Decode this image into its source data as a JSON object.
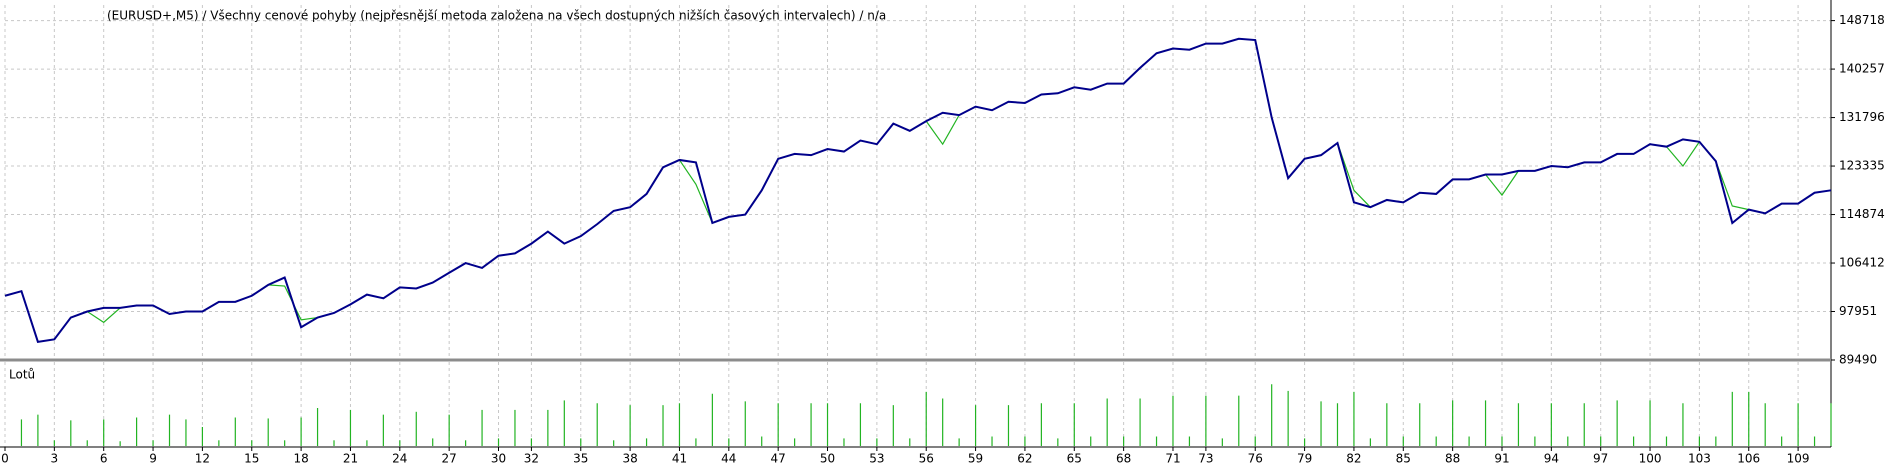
{
  "chart_data": [
    {
      "type": "line",
      "title": "(EURUSD+,M5) / Všechny cenové pohyby (nejpřesnější metoda založena na všech dostupných nižších časových intervalech) / n/a",
      "x": [
        0,
        1,
        2,
        3,
        4,
        5,
        6,
        7,
        8,
        9,
        10,
        11,
        12,
        13,
        14,
        15,
        16,
        17,
        18,
        19,
        20,
        21,
        22,
        23,
        24,
        25,
        26,
        27,
        28,
        29,
        30,
        31,
        32,
        33,
        34,
        35,
        36,
        37,
        38,
        39,
        40,
        41,
        42,
        43,
        44,
        45,
        46,
        47,
        48,
        49,
        50,
        51,
        52,
        53,
        54,
        55,
        56,
        57,
        58,
        59,
        60,
        61,
        62,
        63,
        64,
        65,
        66,
        67,
        68,
        69,
        70,
        71,
        72,
        73,
        74,
        75,
        76,
        77,
        78,
        79,
        80,
        81,
        82,
        83,
        84,
        85,
        86,
        87,
        88,
        89,
        90,
        91,
        92,
        93,
        94,
        95,
        96,
        97,
        98,
        99,
        100,
        101,
        102,
        103,
        104,
        105,
        106,
        107,
        108,
        109,
        110,
        111
      ],
      "series": [
        {
          "color": "#22b422",
          "values": [
            100700,
            101500,
            92660,
            93100,
            96900,
            97950,
            96060,
            98580,
            99000,
            99000,
            97520,
            97950,
            97950,
            99640,
            99640,
            100700,
            102600,
            102400,
            96500,
            96900,
            97700,
            99200,
            100900,
            100260,
            102160,
            101970,
            103000,
            104720,
            106400,
            105560,
            107690,
            108100,
            109800,
            111900,
            109800,
            111100,
            113200,
            115510,
            116150,
            118470,
            123110,
            124400,
            120160,
            113400,
            114460,
            114870,
            119100,
            124600,
            125450,
            125240,
            126300,
            125870,
            127780,
            127150,
            130740,
            129480,
            131170,
            127150,
            132220,
            133700,
            133080,
            134550,
            134340,
            135820,
            136030,
            137080,
            136660,
            137720,
            137720,
            140470,
            143010,
            143850,
            143640,
            144700,
            144700,
            145550,
            145330,
            131800,
            121220,
            124600,
            125240,
            127360,
            119100,
            116150,
            117420,
            117000,
            118680,
            118470,
            121010,
            121010,
            121860,
            118260,
            122490,
            122490,
            123340,
            123130,
            123970,
            123970,
            125450,
            125450,
            127150,
            126720,
            123340,
            127570,
            124180,
            116360,
            115730,
            115080,
            116780,
            116780,
            118680,
            119100
          ]
        },
        {
          "color": "#00008b",
          "values": [
            100700,
            101500,
            92660,
            93100,
            96900,
            97950,
            98580,
            98580,
            99000,
            99000,
            97520,
            97950,
            97950,
            99640,
            99640,
            100700,
            102600,
            103880,
            95200,
            96900,
            97700,
            99200,
            100900,
            100260,
            102160,
            101970,
            103000,
            104720,
            106400,
            105560,
            107690,
            108100,
            109800,
            111900,
            109800,
            111100,
            113200,
            115510,
            116150,
            118470,
            123110,
            124400,
            123970,
            113400,
            114460,
            114870,
            119100,
            124600,
            125450,
            125240,
            126300,
            125870,
            127780,
            127150,
            130740,
            129480,
            131170,
            132640,
            132220,
            133700,
            133080,
            134550,
            134340,
            135820,
            136030,
            137080,
            136660,
            137720,
            137720,
            140470,
            143010,
            143850,
            143640,
            144700,
            144700,
            145550,
            145330,
            131800,
            121220,
            124600,
            125240,
            127360,
            117000,
            116150,
            117420,
            117000,
            118680,
            118470,
            121010,
            121010,
            121860,
            121860,
            122490,
            122490,
            123340,
            123130,
            123970,
            123970,
            125450,
            125450,
            127150,
            126720,
            127990,
            127570,
            124180,
            113400,
            115730,
            115080,
            116780,
            116780,
            118680,
            119100
          ]
        }
      ],
      "xlim": [
        0,
        111
      ],
      "xticks": [
        0,
        3,
        6,
        9,
        12,
        15,
        18,
        21,
        24,
        27,
        30,
        32,
        35,
        38,
        41,
        44,
        47,
        50,
        53,
        56,
        59,
        62,
        65,
        68,
        71,
        73,
        76,
        79,
        82,
        85,
        88,
        91,
        94,
        97,
        100,
        103,
        106,
        109
      ],
      "ylim": [
        89490,
        151440
      ],
      "yticks": [
        89490,
        97951,
        106412,
        114874,
        123335,
        131796,
        140257,
        148718
      ],
      "grid": true
    },
    {
      "type": "bar",
      "title": "Lotů",
      "color": "#22b422",
      "values": [
        null,
        0.28,
        0.33,
        0.06,
        0.27,
        0.06,
        0.28,
        0.05,
        0.3,
        0.06,
        0.33,
        0.28,
        0.2,
        0.06,
        0.3,
        0.06,
        0.29,
        0.06,
        0.3,
        0.4,
        0.06,
        0.38,
        0.06,
        0.33,
        0.06,
        0.36,
        0.08,
        0.33,
        0.06,
        0.38,
        0.08,
        0.38,
        0.08,
        0.38,
        0.48,
        0.08,
        0.45,
        0.06,
        0.43,
        0.08,
        0.43,
        0.45,
        0.08,
        0.55,
        0.08,
        0.47,
        0.1,
        0.45,
        0.08,
        0.45,
        0.45,
        0.08,
        0.45,
        0.08,
        0.43,
        0.08,
        0.57,
        0.5,
        0.08,
        0.43,
        0.1,
        0.43,
        0.1,
        0.45,
        0.08,
        0.45,
        0.1,
        0.5,
        0.1,
        0.5,
        0.1,
        0.53,
        0.1,
        0.53,
        0.08,
        0.53,
        0.1,
        0.65,
        0.58,
        0.08,
        0.47,
        0.45,
        0.57,
        0.08,
        0.45,
        0.1,
        0.45,
        0.1,
        0.48,
        0.1,
        0.48,
        0.1,
        0.45,
        0.1,
        0.45,
        0.1,
        0.45,
        0.1,
        0.48,
        0.1,
        0.48,
        0.1,
        0.45,
        0.1,
        0.1,
        0.57,
        0.57,
        0.45,
        0.1,
        0.45,
        0.1,
        0.45
      ],
      "ylim": [
        0,
        0.8
      ]
    }
  ]
}
